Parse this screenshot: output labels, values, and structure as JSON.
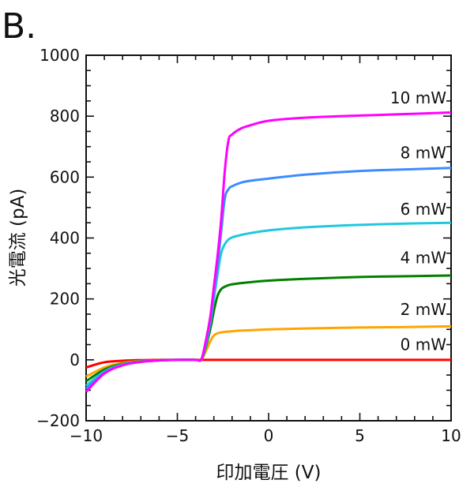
{
  "panel_label": "B.",
  "chart_data": {
    "type": "line",
    "title": "",
    "xlabel": "印加電圧 (V)",
    "ylabel": "光電流 (pA)",
    "xlim": [
      -10,
      10
    ],
    "ylim": [
      -200,
      1000
    ],
    "xticks": [
      -10,
      -5,
      0,
      5,
      10
    ],
    "xtick_labels": [
      "−10",
      "−5",
      "0",
      "5",
      "10"
    ],
    "yticks": [
      -200,
      0,
      200,
      400,
      600,
      800,
      1000
    ],
    "ytick_labels": [
      "−200",
      "0",
      "200",
      "400",
      "600",
      "800",
      "1000"
    ],
    "grid": false,
    "legend": "none",
    "x": [
      -10,
      -9,
      -8,
      -7,
      -6,
      -5,
      -4,
      -3.7,
      -3.5,
      -3.2,
      -3,
      -2.8,
      -2.6,
      -2.4,
      -2.2,
      -2,
      -1.5,
      -1,
      0,
      2,
      5,
      8,
      10
    ],
    "series": [
      {
        "name": "0 mW",
        "color": "#ff0000",
        "values": [
          -25,
          -8,
          -3,
          -1,
          0,
          0,
          0,
          0,
          0,
          0,
          0,
          0,
          0,
          0,
          0,
          0,
          0,
          0,
          0,
          0,
          0,
          0,
          0
        ]
      },
      {
        "name": "2 mW",
        "color": "#ffa500",
        "values": [
          -55,
          -25,
          -10,
          -4,
          -1,
          0,
          0,
          0,
          20,
          60,
          80,
          87,
          90,
          92,
          93,
          94,
          96,
          97,
          100,
          103,
          106,
          108,
          110
        ]
      },
      {
        "name": "4 mW",
        "color": "#008000",
        "values": [
          -70,
          -32,
          -13,
          -5,
          -1,
          0,
          0,
          0,
          30,
          100,
          160,
          210,
          232,
          240,
          245,
          248,
          252,
          255,
          260,
          266,
          272,
          275,
          277
        ]
      },
      {
        "name": "6 mW",
        "color": "#20c8e0",
        "values": [
          -85,
          -38,
          -15,
          -6,
          -2,
          0,
          0,
          0,
          35,
          120,
          200,
          280,
          350,
          380,
          395,
          402,
          410,
          416,
          425,
          435,
          443,
          448,
          450
        ]
      },
      {
        "name": "8 mW",
        "color": "#3c8cff",
        "values": [
          -95,
          -42,
          -17,
          -6,
          -2,
          0,
          0,
          0,
          40,
          130,
          220,
          310,
          420,
          530,
          560,
          570,
          582,
          588,
          595,
          608,
          620,
          626,
          630
        ]
      },
      {
        "name": "10 mW",
        "color": "#ff00ff",
        "values": [
          -105,
          -45,
          -18,
          -7,
          -2,
          0,
          0,
          0,
          45,
          140,
          240,
          340,
          460,
          620,
          720,
          740,
          760,
          770,
          785,
          795,
          802,
          808,
          812
        ]
      }
    ],
    "annotations": [
      {
        "text": "10 mW",
        "y": 860
      },
      {
        "text": "8 mW",
        "y": 680
      },
      {
        "text": "6 mW",
        "y": 495
      },
      {
        "text": "4 mW",
        "y": 335
      },
      {
        "text": "2 mW",
        "y": 165
      },
      {
        "text": "0 mW",
        "y": 50
      }
    ]
  }
}
